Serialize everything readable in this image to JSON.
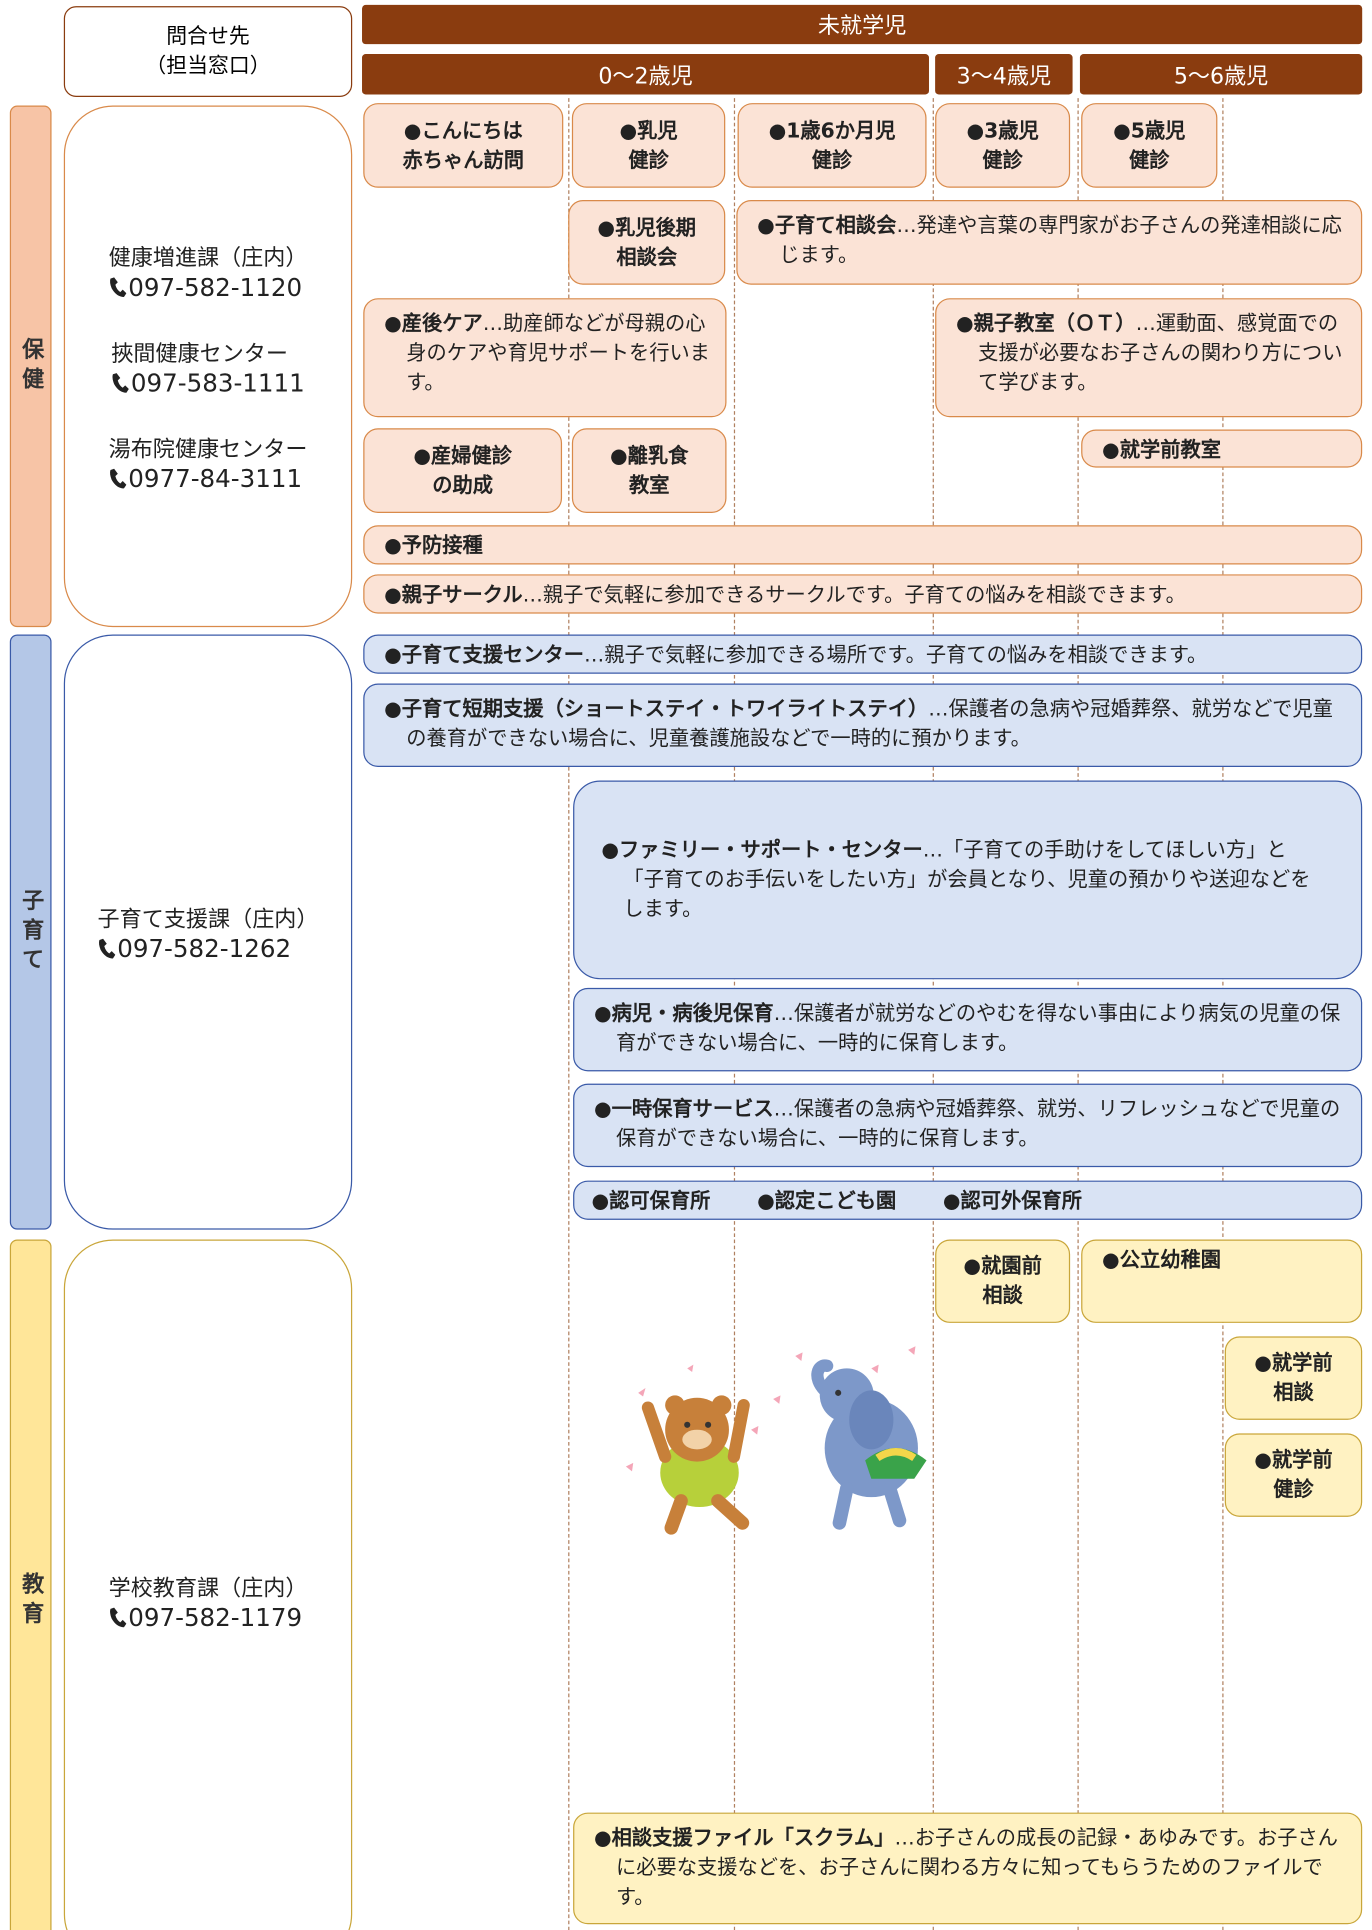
{
  "header": {
    "contact_header": "問合せ先\n（担当窓口）",
    "top": "未就学児",
    "columns": [
      "0〜2歳児",
      "3〜4歳児",
      "5〜6歳児"
    ]
  },
  "sections": [
    {
      "label": "保健",
      "contacts": [
        {
          "name": "健康増進課（庄内）",
          "phone": "097-582-1120"
        },
        {
          "name": "挾間健康センター",
          "phone": "097-583-1111"
        },
        {
          "name": "湯布院健康センター",
          "phone": "0977-84-3111"
        }
      ],
      "items": [
        {
          "title": "●こんにちは\n赤ちゃん訪問"
        },
        {
          "title": "●乳児\n健診"
        },
        {
          "title": "●1歳6か月児\n健診"
        },
        {
          "title": "●3歳児\n健診"
        },
        {
          "title": "●5歳児\n健診"
        },
        {
          "title": "●乳児後期\n相談会"
        },
        {
          "title": "●子育て相談会",
          "desc": "…発達や言葉の専門家がお子さんの発達相談に応じます。"
        },
        {
          "title": "●産後ケア",
          "desc": "…助産師などが母親の心身のケアや育児サポートを行います。"
        },
        {
          "title": "●親子教室（ＯＴ）",
          "desc": "…運動面、感覚面での支援が必要なお子さんの関わり方について学びます。"
        },
        {
          "title": "●就学前教室"
        },
        {
          "title": "●産婦健診\nの助成"
        },
        {
          "title": "●離乳食\n教室"
        },
        {
          "title": "●予防接種"
        },
        {
          "title": "●親子サークル",
          "desc": "…親子で気軽に参加できるサークルです。子育ての悩みを相談できます。"
        }
      ]
    },
    {
      "label": "子育て",
      "contacts": [
        {
          "name": "子育て支援課（庄内）",
          "phone": "097-582-1262"
        }
      ],
      "items": [
        {
          "title": "●子育て支援センター",
          "desc": "…親子で気軽に参加できる場所です。子育ての悩みを相談できます。"
        },
        {
          "title": "●子育て短期支援（ショートステイ・トワイライトステイ）",
          "desc": "…保護者の急病や冠婚葬祭、就労などで児童の養育ができない場合に、児童養護施設などで一時的に預かります。"
        },
        {
          "title": "●ファミリー・サポート・センター",
          "desc": "…「子育ての手助けをしてほしい方」と「子育てのお手伝いをしたい方」が会員となり、児童の預かりや送迎などをします。"
        },
        {
          "title": "●病児・病後児保育",
          "desc": "…保護者が就労などのやむを得ない事由により病気の児童の保育ができない場合に、一時的に保育します。"
        },
        {
          "title": "●一時保育サービス",
          "desc": "…保護者の急病や冠婚葬祭、就労、リフレッシュなどで児童の保育ができない場合に、一時的に保育します。"
        },
        {
          "names": [
            "●認可保育所",
            "●認定こども園",
            "●認可外保育所"
          ]
        }
      ]
    },
    {
      "label": "教育",
      "contacts": [
        {
          "name": "学校教育課（庄内）",
          "phone": "097-582-1179"
        }
      ],
      "items": [
        {
          "title": "●就園前\n相談"
        },
        {
          "title": "●公立幼稚園"
        },
        {
          "title": "●就学前\n相談"
        },
        {
          "title": "●就学前\n健診"
        },
        {
          "title": "●相談支援ファイル「スクラム」",
          "desc": "…お子さんの成長の記録・あゆみです。お子さんに必要な支援などを、お子さんに関わる方々に知ってもらうためのファイルです。"
        }
      ]
    }
  ]
}
